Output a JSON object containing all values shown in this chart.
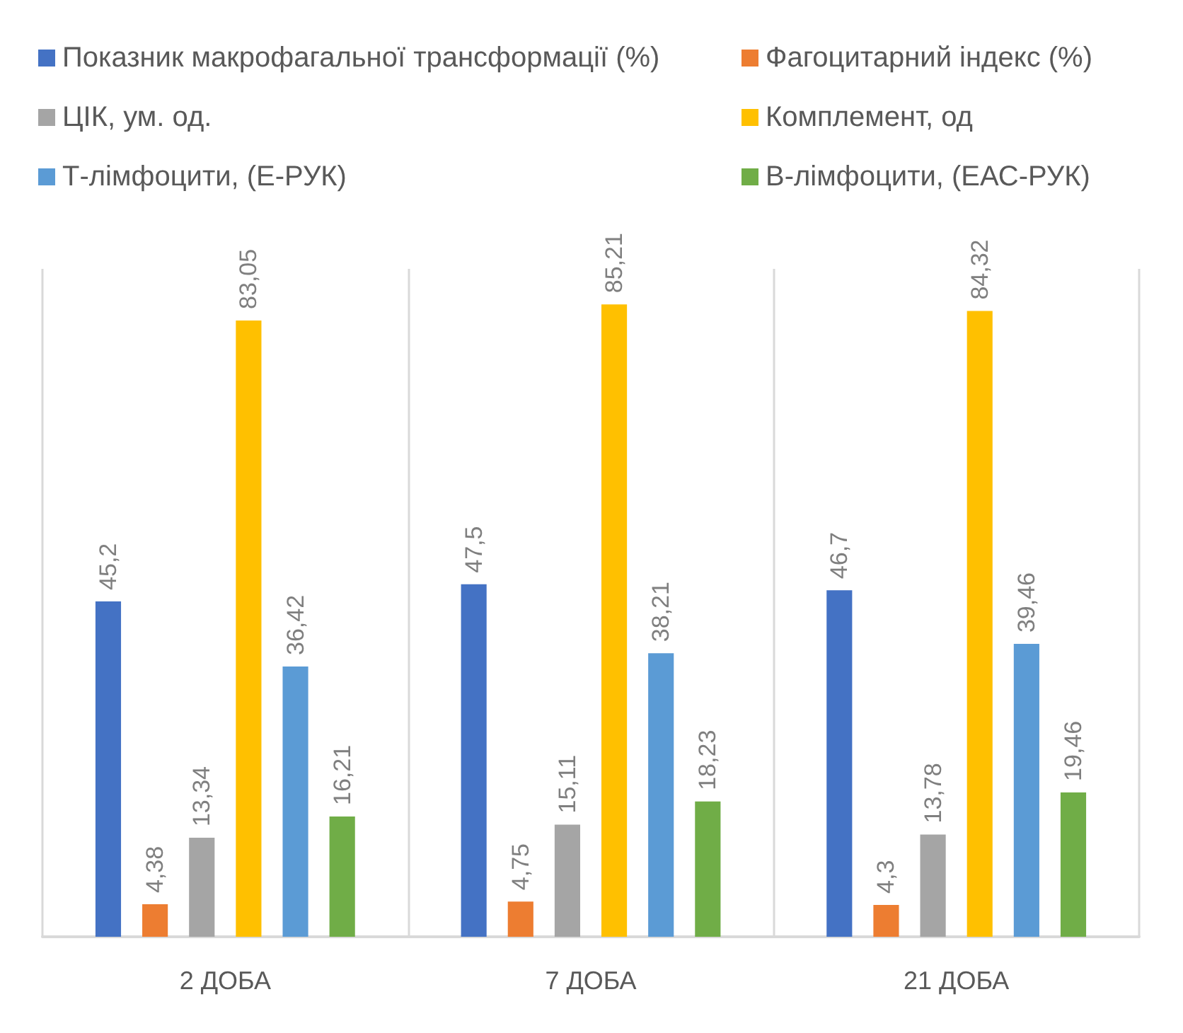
{
  "chart_data": {
    "type": "bar",
    "categories": [
      "2 ДОБА",
      "7 ДОБА",
      "21 ДОБА"
    ],
    "series": [
      {
        "name": "Показник макрофагальної трансформації (%)",
        "color": "#4472c4",
        "values": [
          45.2,
          47.5,
          46.7
        ],
        "value_labels": [
          "45,2",
          "47,5",
          "46,7"
        ]
      },
      {
        "name": "Фагоцитарний індекс (%)",
        "color": "#ed7d31",
        "values": [
          4.38,
          4.75,
          4.3
        ],
        "value_labels": [
          "4,38",
          "4,75",
          "4,3"
        ]
      },
      {
        "name": "ЦІК, ум. од.",
        "color": "#a5a5a5",
        "values": [
          13.34,
          15.11,
          13.78
        ],
        "value_labels": [
          "13,34",
          "15,11",
          "13,78"
        ]
      },
      {
        "name": "Комплемент, од",
        "color": "#ffc000",
        "values": [
          83.05,
          85.21,
          84.32
        ],
        "value_labels": [
          "83,05",
          "85,21",
          "84,32"
        ]
      },
      {
        "name": "Т-лімфоцити, (Е-РУК)",
        "color": "#5b9bd5",
        "values": [
          36.42,
          38.21,
          39.46
        ],
        "value_labels": [
          "36,42",
          "38,21",
          "39,46"
        ]
      },
      {
        "name": "В-лімфоцити, (ЕАС-РУК)",
        "color": "#70ad47",
        "values": [
          16.21,
          18.23,
          19.46
        ],
        "value_labels": [
          "16,21",
          "18,23",
          "19,46"
        ]
      }
    ],
    "ylim": [
      0,
      90
    ],
    "tick_labels": "x",
    "grid": "x",
    "legend": "top"
  }
}
